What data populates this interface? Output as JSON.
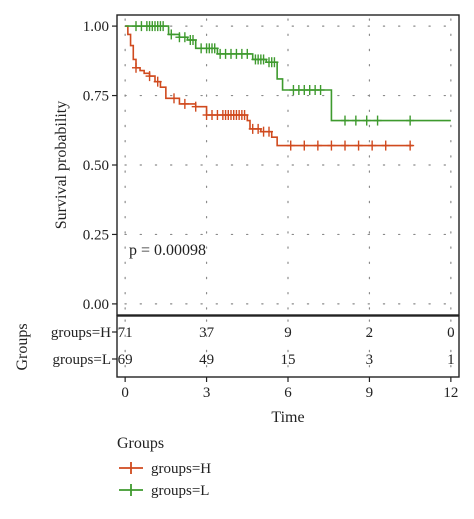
{
  "chart_data": [
    {
      "type": "line",
      "subtype": "kaplan-meier",
      "title": "",
      "xlabel": "",
      "ylabel": "Survival probability",
      "xlim": [
        -0.3,
        12.3
      ],
      "ylim": [
        -0.04,
        1.04
      ],
      "yticks": [
        "0.00",
        "0.25",
        "0.50",
        "0.75",
        "1.00"
      ],
      "ytick_values": [
        0,
        0.25,
        0.5,
        0.75,
        1.0
      ],
      "grid": "dotted",
      "annotation": "p = 0.00098",
      "series": [
        {
          "name": "groups=H",
          "color": "#d04a1e",
          "steps": [
            [
              0,
              1.0
            ],
            [
              0.1,
              0.97
            ],
            [
              0.2,
              0.93
            ],
            [
              0.3,
              0.88
            ],
            [
              0.4,
              0.85
            ],
            [
              0.55,
              0.84
            ],
            [
              0.7,
              0.83
            ],
            [
              0.9,
              0.82
            ],
            [
              1.1,
              0.8
            ],
            [
              1.3,
              0.78
            ],
            [
              1.5,
              0.74
            ],
            [
              2.0,
              0.72
            ],
            [
              2.6,
              0.71
            ],
            [
              3.0,
              0.68
            ],
            [
              4.5,
              0.66
            ],
            [
              4.6,
              0.63
            ],
            [
              5.0,
              0.62
            ],
            [
              5.4,
              0.6
            ],
            [
              5.6,
              0.57
            ],
            [
              10.6,
              0.57
            ]
          ],
          "censor_times": [
            0.4,
            0.9,
            1.2,
            1.8,
            2.2,
            2.6,
            3.0,
            3.2,
            3.4,
            3.6,
            3.7,
            3.8,
            3.9,
            4.0,
            4.1,
            4.2,
            4.3,
            4.4,
            4.7,
            4.9,
            5.1,
            5.3,
            6.1,
            6.6,
            7.1,
            7.6,
            8.1,
            8.6,
            9.1,
            9.6,
            10.5
          ]
        },
        {
          "name": "groups=L",
          "color": "#3e9a2e",
          "steps": [
            [
              0,
              1.0
            ],
            [
              1.6,
              0.97
            ],
            [
              2.0,
              0.96
            ],
            [
              2.3,
              0.95
            ],
            [
              2.6,
              0.92
            ],
            [
              3.4,
              0.9
            ],
            [
              4.7,
              0.88
            ],
            [
              5.2,
              0.87
            ],
            [
              5.6,
              0.81
            ],
            [
              5.8,
              0.77
            ],
            [
              7.6,
              0.66
            ],
            [
              12.0,
              0.66
            ]
          ],
          "censor_times": [
            0.4,
            0.6,
            0.8,
            0.9,
            1.0,
            1.1,
            1.2,
            1.3,
            1.4,
            1.7,
            2.0,
            2.2,
            2.4,
            2.5,
            2.8,
            3.0,
            3.1,
            3.2,
            3.3,
            3.5,
            3.7,
            3.9,
            4.1,
            4.3,
            4.5,
            4.8,
            4.9,
            5.0,
            5.1,
            5.3,
            5.4,
            5.5,
            6.2,
            6.4,
            6.6,
            6.8,
            7.0,
            7.2,
            8.1,
            8.5,
            8.9,
            9.3,
            10.5
          ]
        }
      ]
    },
    {
      "type": "table",
      "subtype": "risk-table",
      "title": "",
      "xlabel": "Time",
      "ylabel": "Groups",
      "xlim": [
        -0.3,
        12.3
      ],
      "x": [
        0,
        3,
        6,
        9,
        12
      ],
      "xtick_labels": [
        "0",
        "3",
        "6",
        "9",
        "12"
      ],
      "rows": [
        {
          "label": "groups=H",
          "values": [
            "71",
            "37",
            "9",
            "2",
            "0"
          ],
          "color": "#d04a1e"
        },
        {
          "label": "groups=L",
          "values": [
            "69",
            "49",
            "15",
            "3",
            "1"
          ],
          "color": "#3e9a2e"
        }
      ]
    }
  ],
  "legend": {
    "title": "Groups",
    "placement": "bottom-left",
    "items": [
      {
        "label": "groups=H",
        "color": "#d04a1e"
      },
      {
        "label": "groups=L",
        "color": "#3e9a2e"
      }
    ]
  }
}
